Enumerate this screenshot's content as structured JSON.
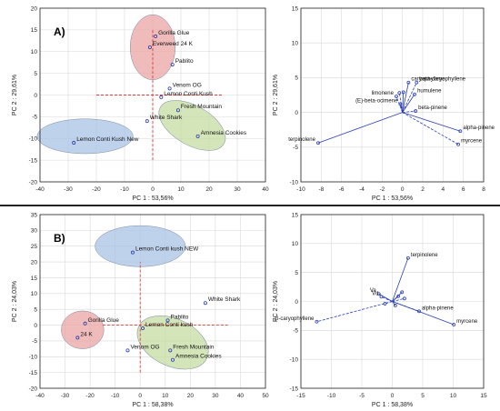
{
  "colors": {
    "red_ellipse": "#e9a4a4",
    "blue_ellipse": "#a9c3e6",
    "green_ellipse": "#c6dca3",
    "point_blue": "#2a3fb0",
    "cross_red": "#e23b3b",
    "divider": "#222222"
  },
  "chart_data": [
    {
      "type": "scatter",
      "panel_label": "A)",
      "xlabel": "PC 1 : 53,56%",
      "ylabel": "PC 2 : 29,61%",
      "xlim": [
        -40,
        40
      ],
      "ylim": [
        -20,
        20
      ],
      "xticks": [
        "-40",
        "-30",
        "-20",
        "-10",
        "0",
        "10",
        "20",
        "30",
        "40"
      ],
      "yticks": [
        "-20",
        "-15",
        "-10",
        "-5",
        "0",
        "5",
        "10",
        "15",
        "20"
      ],
      "grid": true,
      "points": [
        {
          "label": "Gorilla Glue",
          "x": 1,
          "y": 13.5
        },
        {
          "label": "Everweed 24 K",
          "x": -1,
          "y": 11
        },
        {
          "label": "Pablito",
          "x": 7,
          "y": 7
        },
        {
          "label": "Venom OG",
          "x": 6,
          "y": 1.5
        },
        {
          "label": "Lemon Conti Kush",
          "x": 3,
          "y": -0.5
        },
        {
          "label": "White Shark",
          "x": -2,
          "y": -6
        },
        {
          "label": "Fresh Mountain",
          "x": 9,
          "y": -3.5
        },
        {
          "label": "Amnesia Cookies",
          "x": 16,
          "y": -9.5
        },
        {
          "label": "Lemon Conti Kush New",
          "x": -28,
          "y": -11
        }
      ],
      "ellipses": [
        {
          "color": "red_ellipse",
          "cx": 0,
          "cy": 11,
          "rx": 8,
          "ry": 7.5
        },
        {
          "color": "blue_ellipse",
          "cx": -24,
          "cy": -9.5,
          "rx": 17,
          "ry": 4
        },
        {
          "color": "green_ellipse",
          "cx": 14,
          "cy": -7,
          "rx": 13,
          "ry": 4.5,
          "rotate": 30
        }
      ],
      "cross": {
        "x": [
          -20,
          25
        ],
        "y": [
          -15,
          15
        ]
      }
    },
    {
      "type": "scatter",
      "variant": "loadings",
      "xlabel": "PC 1 : 53,56%",
      "ylabel": "PC 2 : 29,61%",
      "xlim": [
        -10,
        8
      ],
      "ylim": [
        -10,
        15
      ],
      "xticks": [
        "-10",
        "-8",
        "-6",
        "-4",
        "-2",
        "0",
        "2",
        "4",
        "6",
        "8"
      ],
      "yticks": [
        "-10",
        "-5",
        "0",
        "5",
        "10",
        "15"
      ],
      "grid": true,
      "vectors": [
        {
          "label": "terpinolene",
          "x": -8.3,
          "y": -4.4
        },
        {
          "label": "myrcene",
          "x": 5.5,
          "y": -4.6
        },
        {
          "label": "alpha-pinene",
          "x": 5.7,
          "y": -2.7
        },
        {
          "label": "beta-pinene",
          "x": 1.3,
          "y": 0.2
        },
        {
          "label": "caryophyllene",
          "x": 0.6,
          "y": 4.3
        },
        {
          "label": "beta-caryophyllene",
          "x": 1.4,
          "y": 4.3
        },
        {
          "label": "humulene",
          "x": 1.2,
          "y": 2.6
        },
        {
          "label": "limonene",
          "x": -0.6,
          "y": 2.3
        },
        {
          "label": "(E)-beta-ocimene",
          "x": -0.2,
          "y": 1.2
        },
        {
          "label": "",
          "x": -0.3,
          "y": 2.8
        },
        {
          "label": "",
          "x": 0.1,
          "y": 2.9
        }
      ]
    },
    {
      "type": "scatter",
      "panel_label": "B)",
      "xlabel": "PC 1 : 58,38%",
      "ylabel": "PC 2 : 24,03%",
      "xlim": [
        -40,
        50
      ],
      "ylim": [
        -20,
        35
      ],
      "xticks": [
        "-40",
        "-30",
        "-20",
        "-10",
        "0",
        "10",
        "20",
        "30",
        "40",
        "50"
      ],
      "yticks": [
        "-20",
        "-15",
        "-10",
        "-5",
        "0",
        "5",
        "10",
        "15",
        "20",
        "25",
        "30",
        "35"
      ],
      "grid": true,
      "points": [
        {
          "label": "Lemon Conti kush NEW",
          "x": -3,
          "y": 23
        },
        {
          "label": "White Shark",
          "x": 26,
          "y": 7
        },
        {
          "label": "Pablito",
          "x": 11,
          "y": 1.5
        },
        {
          "label": "Gorilla Glue",
          "x": -22,
          "y": 0.5
        },
        {
          "label": "24 K",
          "x": -25,
          "y": -4
        },
        {
          "label": "Lemon Conti kush",
          "x": 1,
          "y": -1
        },
        {
          "label": "Venom OG",
          "x": -5,
          "y": -8
        },
        {
          "label": "Fresh Mountain",
          "x": 12,
          "y": -8
        },
        {
          "label": "Amnesia Cookies",
          "x": 13,
          "y": -11
        }
      ],
      "ellipses": [
        {
          "color": "blue_ellipse",
          "cx": 0,
          "cy": 25,
          "rx": 18,
          "ry": 6.5
        },
        {
          "color": "red_ellipse",
          "cx": -23,
          "cy": -1.5,
          "rx": 8.5,
          "ry": 6
        },
        {
          "color": "green_ellipse",
          "cx": 13,
          "cy": -5.5,
          "rx": 15,
          "ry": 7.5,
          "rotate": 25
        }
      ],
      "cross": {
        "x": [
          -15,
          35
        ],
        "y": [
          -15,
          20
        ]
      }
    },
    {
      "type": "scatter",
      "variant": "loadings",
      "xlabel": "PC 1 : 58,38%",
      "ylabel": "PC 2 : 24,03%",
      "xlim": [
        -15,
        15
      ],
      "ylim": [
        -15,
        15
      ],
      "xticks": [
        "-15",
        "-10",
        "-5",
        "0",
        "5",
        "10",
        "15"
      ],
      "yticks": [
        "-15",
        "-10",
        "-5",
        "0",
        "5",
        "10",
        "15"
      ],
      "grid": true,
      "vectors": [
        {
          "label": "terpinolene",
          "x": 2.6,
          "y": 7.5
        },
        {
          "label": "β-caryophyllene",
          "x": -12.4,
          "y": -3.5
        },
        {
          "label": "myrcene",
          "x": 10.1,
          "y": -4
        },
        {
          "label": "alpha-pinene",
          "x": 4.4,
          "y": -1.7
        },
        {
          "label": "Va",
          "x": -2.2,
          "y": 1.3
        },
        {
          "label": "Vd",
          "x": -1.8,
          "y": 0.8
        },
        {
          "label": "",
          "x": 1,
          "y": 0.9
        },
        {
          "label": "",
          "x": 2,
          "y": 0.5
        },
        {
          "label": "",
          "x": 0.5,
          "y": -0.7
        },
        {
          "label": "",
          "x": -1.2,
          "y": -0.4
        },
        {
          "label": "",
          "x": 1.6,
          "y": 1.6
        }
      ]
    }
  ]
}
